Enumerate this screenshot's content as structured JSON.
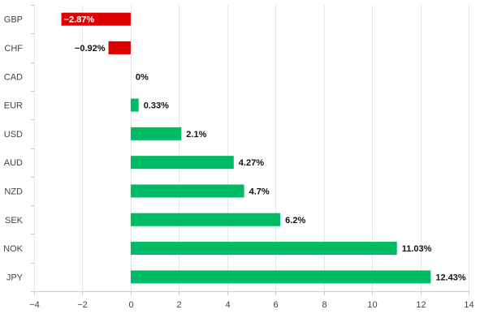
{
  "chart_data": {
    "type": "bar",
    "orientation": "horizontal",
    "title": "",
    "xlabel": "",
    "ylabel": "",
    "categories": [
      "GBP",
      "CHF",
      "CAD",
      "EUR",
      "USD",
      "AUD",
      "NZD",
      "SEK",
      "NOK",
      "JPY"
    ],
    "values": [
      -2.87,
      -0.92,
      0,
      0.33,
      2.1,
      4.27,
      4.7,
      6.2,
      11.03,
      12.43
    ],
    "value_labels": [
      "−2.87%",
      "−0.92%",
      "0%",
      "0.33%",
      "2.1%",
      "4.27%",
      "4.7%",
      "6.2%",
      "11.03%",
      "12.43%"
    ],
    "xlim": [
      -4,
      14
    ],
    "xticks": [
      -4,
      -2,
      0,
      2,
      4,
      6,
      8,
      10,
      12,
      14
    ],
    "xtick_labels": [
      "−4",
      "−2",
      "0",
      "2",
      "4",
      "6",
      "8",
      "10",
      "12",
      "14"
    ],
    "grid": true,
    "legend": "none",
    "colors": {
      "positive": "#00bb66",
      "negative": "#dd0000",
      "grid": "#e6e6e6",
      "axis": "#cccccc"
    }
  }
}
